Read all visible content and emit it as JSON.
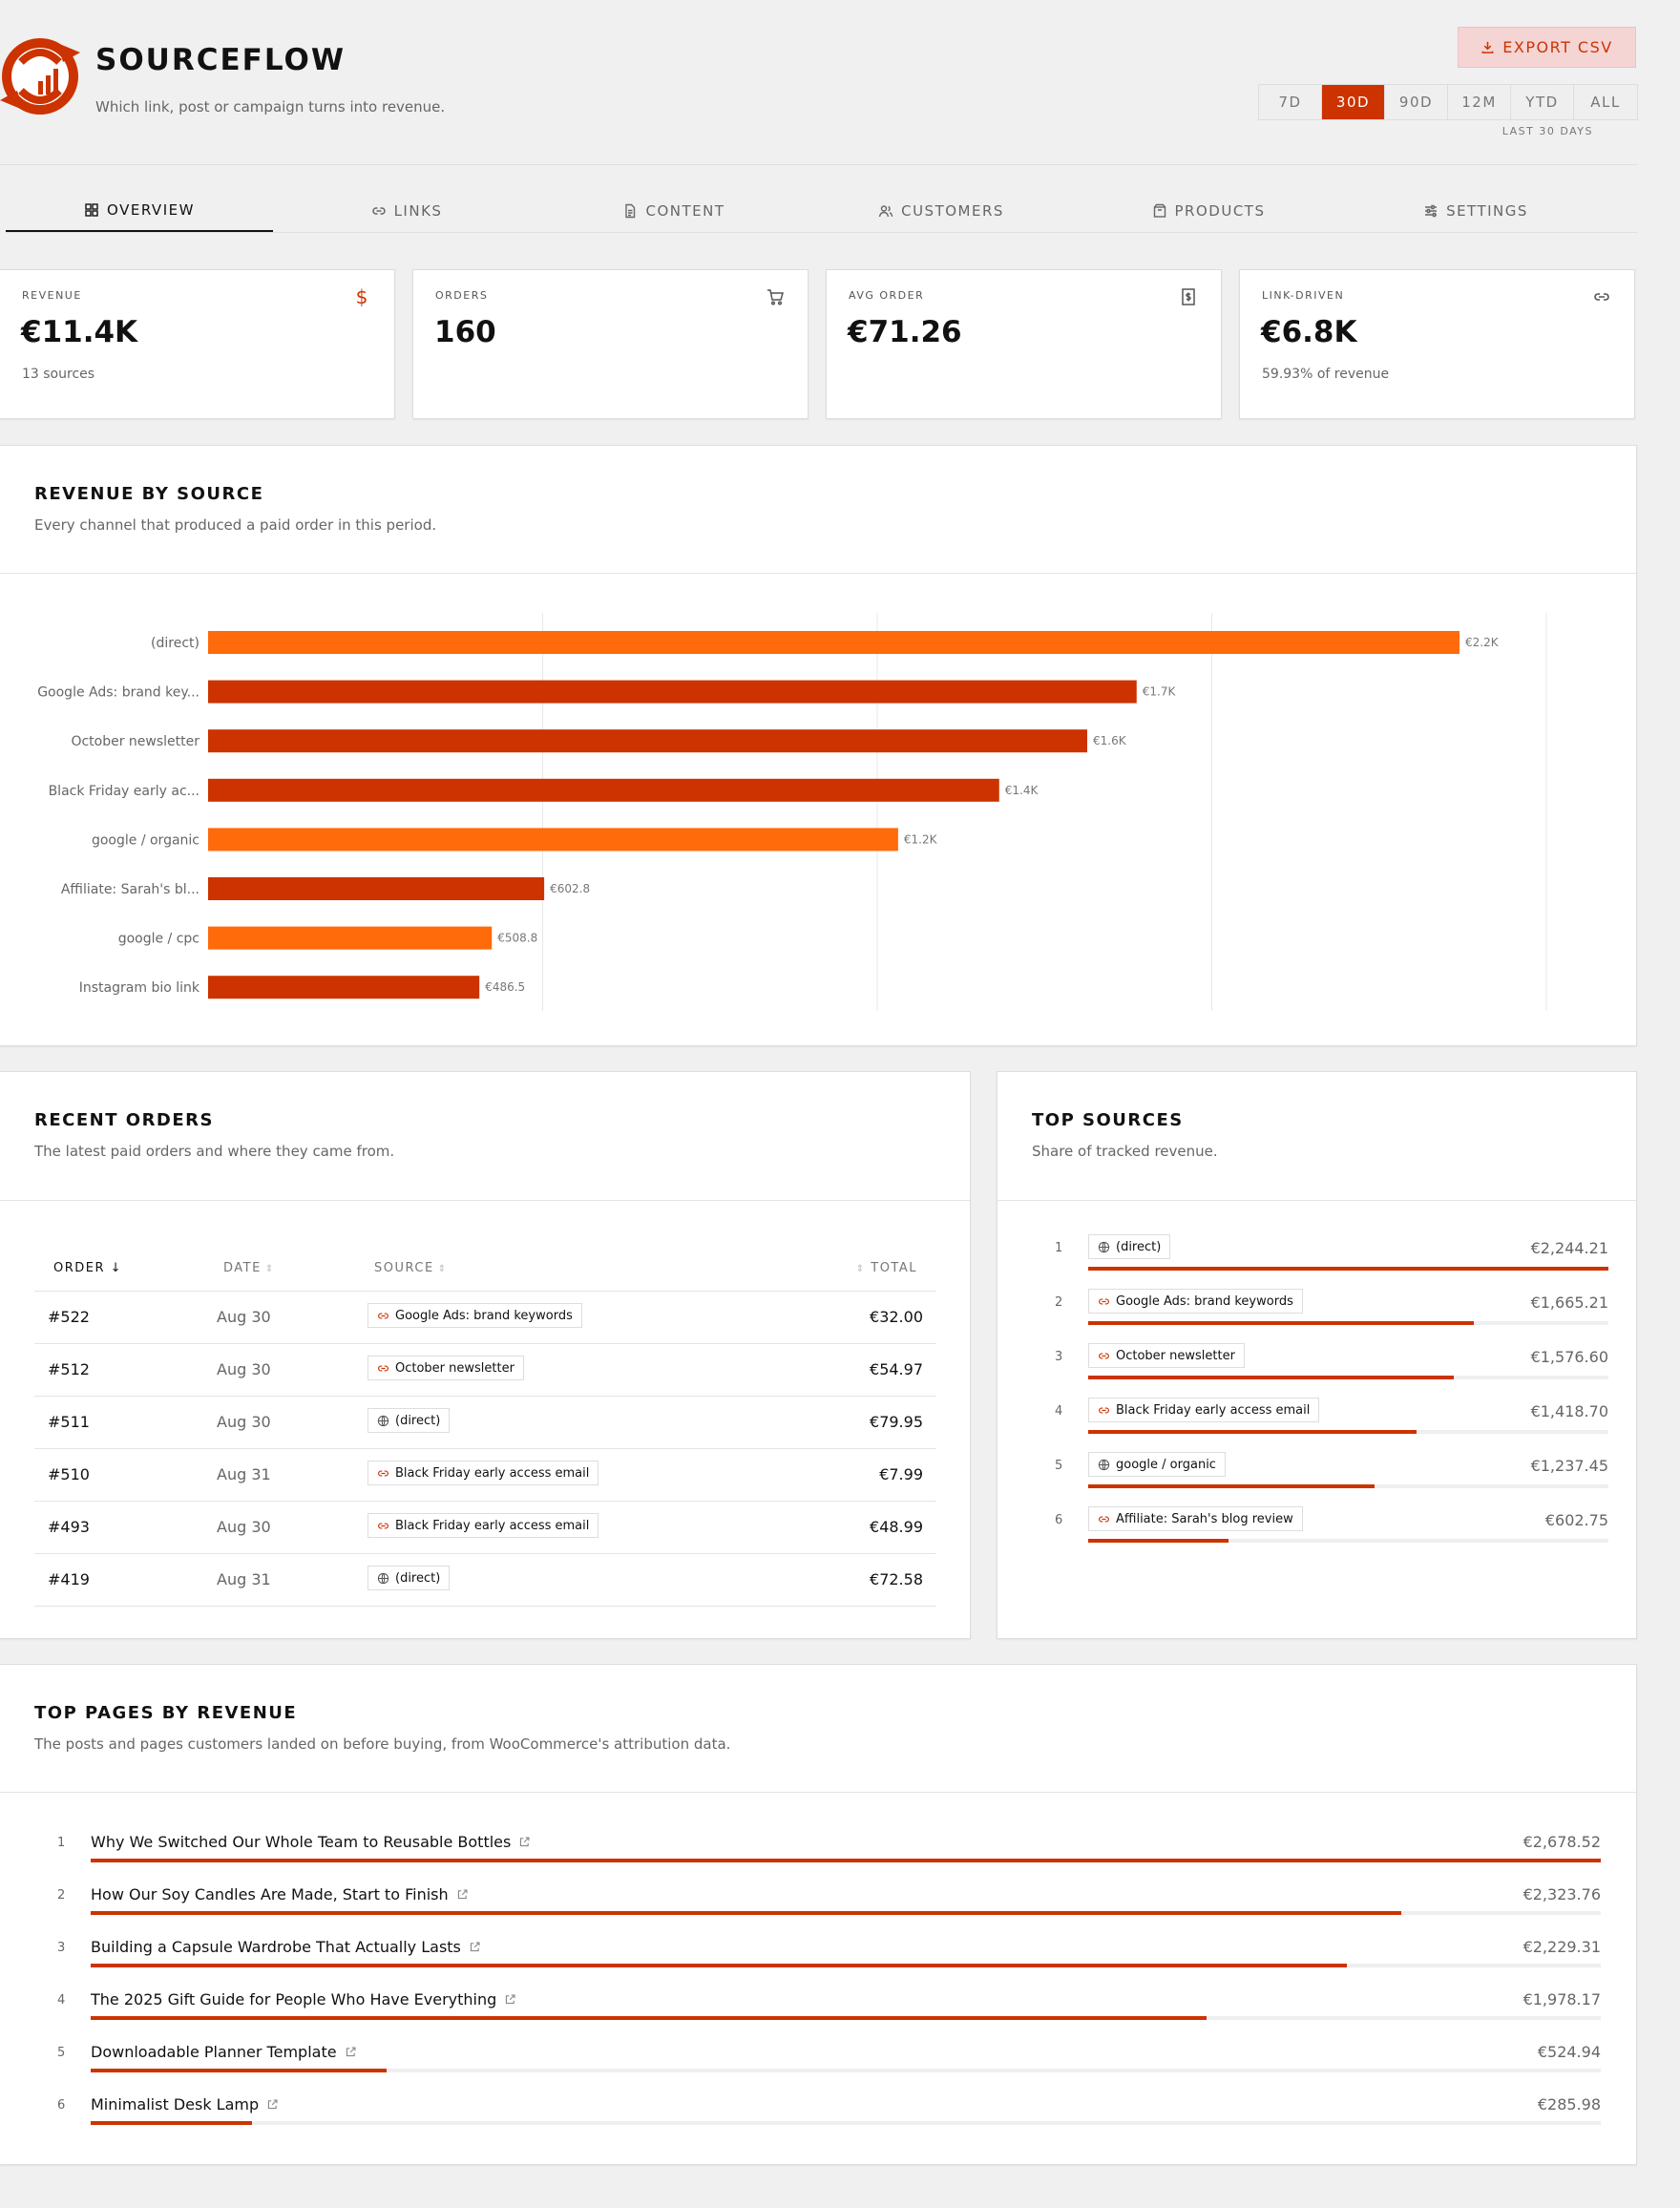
{
  "brand": {
    "title": "SOURCEFLOW",
    "subtitle": "Which link, post or campaign turns into revenue."
  },
  "header": {
    "export_label": "EXPORT CSV",
    "ranges": [
      "7D",
      "30D",
      "90D",
      "12M",
      "YTD",
      "ALL"
    ],
    "active_range": "30D",
    "range_caption": "LAST 30 DAYS"
  },
  "tabs": [
    {
      "label": "OVERVIEW",
      "icon": "grid-icon",
      "active": true
    },
    {
      "label": "LINKS",
      "icon": "link-icon",
      "active": false
    },
    {
      "label": "CONTENT",
      "icon": "document-icon",
      "active": false
    },
    {
      "label": "CUSTOMERS",
      "icon": "users-icon",
      "active": false
    },
    {
      "label": "PRODUCTS",
      "icon": "package-icon",
      "active": false
    },
    {
      "label": "SETTINGS",
      "icon": "sliders-icon",
      "active": false
    }
  ],
  "kpis": [
    {
      "label": "REVENUE",
      "value": "€11.4K",
      "sub": "13 sources",
      "icon": "dollar-icon"
    },
    {
      "label": "ORDERS",
      "value": "160",
      "sub": "",
      "icon": "cart-icon"
    },
    {
      "label": "AVG ORDER",
      "value": "€71.26",
      "sub": "",
      "icon": "receipt-icon"
    },
    {
      "label": "LINK-DRIVEN",
      "value": "€6.8K",
      "sub": "59.93% of revenue",
      "icon": "link-icon"
    }
  ],
  "revenue_by_source": {
    "title": "REVENUE BY SOURCE",
    "subtitle": "Every channel that produced a paid order in this period."
  },
  "chart_data": {
    "type": "bar",
    "orientation": "horizontal",
    "categories": [
      "(direct)",
      "Google Ads: brand key...",
      "October newsletter",
      "Black Friday early ac...",
      "google / organic",
      "Affiliate: Sarah's bl...",
      "google / cpc",
      "Instagram bio link"
    ],
    "values": [
      2244.21,
      1665.21,
      1576.6,
      1418.7,
      1237.45,
      602.75,
      508.8,
      486.5
    ],
    "data_labels": [
      "€2.2K",
      "€1.7K",
      "€1.6K",
      "€1.4K",
      "€1.2K",
      "€602.8",
      "€508.8",
      "€486.5"
    ],
    "bar_kind": [
      "organic",
      "link",
      "link",
      "link",
      "organic",
      "link",
      "organic",
      "link"
    ],
    "colors": {
      "organic": "#ff6a0a",
      "link": "#cc3300"
    },
    "xlim": [
      0,
      2400
    ],
    "grid": true,
    "title": "",
    "xlabel": "",
    "ylabel": ""
  },
  "recent_orders": {
    "title": "RECENT ORDERS",
    "subtitle": "The latest paid orders and where they came from.",
    "columns": [
      "ORDER",
      "DATE",
      "SOURCE",
      "TOTAL"
    ],
    "rows": [
      {
        "order": "#522",
        "date": "Aug 30",
        "source": "Google Ads: brand keywords",
        "source_icon": "link-icon",
        "total": "€32.00"
      },
      {
        "order": "#512",
        "date": "Aug 30",
        "source": "October newsletter",
        "source_icon": "link-icon",
        "total": "€54.97"
      },
      {
        "order": "#511",
        "date": "Aug 30",
        "source": "(direct)",
        "source_icon": "globe-icon",
        "total": "€79.95"
      },
      {
        "order": "#510",
        "date": "Aug 31",
        "source": "Black Friday early access email",
        "source_icon": "link-icon",
        "total": "€7.99"
      },
      {
        "order": "#493",
        "date": "Aug 30",
        "source": "Black Friday early access email",
        "source_icon": "link-icon",
        "total": "€48.99"
      },
      {
        "order": "#419",
        "date": "Aug 31",
        "source": "(direct)",
        "source_icon": "globe-icon",
        "total": "€72.58"
      }
    ]
  },
  "top_sources": {
    "title": "TOP SOURCES",
    "subtitle": "Share of tracked revenue.",
    "items": [
      {
        "rank": "1",
        "name": "(direct)",
        "icon": "globe-icon",
        "value": "€2,244.21",
        "share": 1.0
      },
      {
        "rank": "2",
        "name": "Google Ads: brand keywords",
        "icon": "link-icon",
        "value": "€1,665.21",
        "share": 0.742
      },
      {
        "rank": "3",
        "name": "October newsletter",
        "icon": "link-icon",
        "value": "€1,576.60",
        "share": 0.703
      },
      {
        "rank": "4",
        "name": "Black Friday early access email",
        "icon": "link-icon",
        "value": "€1,418.70",
        "share": 0.632
      },
      {
        "rank": "5",
        "name": "google / organic",
        "icon": "globe-icon",
        "value": "€1,237.45",
        "share": 0.551
      },
      {
        "rank": "6",
        "name": "Affiliate: Sarah's blog review",
        "icon": "link-icon",
        "value": "€602.75",
        "share": 0.269
      }
    ]
  },
  "top_pages": {
    "title": "TOP PAGES BY REVENUE",
    "subtitle": "The posts and pages customers landed on before buying, from WooCommerce's attribution data.",
    "items": [
      {
        "rank": "1",
        "title": "Why We Switched Our Whole Team to Reusable Bottles",
        "value": "€2,678.52",
        "share": 1.0
      },
      {
        "rank": "2",
        "title": "How Our Soy Candles Are Made, Start to Finish",
        "value": "€2,323.76",
        "share": 0.868
      },
      {
        "rank": "3",
        "title": "Building a Capsule Wardrobe That Actually Lasts",
        "value": "€2,229.31",
        "share": 0.832
      },
      {
        "rank": "4",
        "title": "The 2025 Gift Guide for People Who Have Everything",
        "value": "€1,978.17",
        "share": 0.739
      },
      {
        "rank": "5",
        "title": "Downloadable Planner Template",
        "value": "€524.94",
        "share": 0.196
      },
      {
        "rank": "6",
        "title": "Minimalist Desk Lamp",
        "value": "€285.98",
        "share": 0.107
      }
    ]
  }
}
